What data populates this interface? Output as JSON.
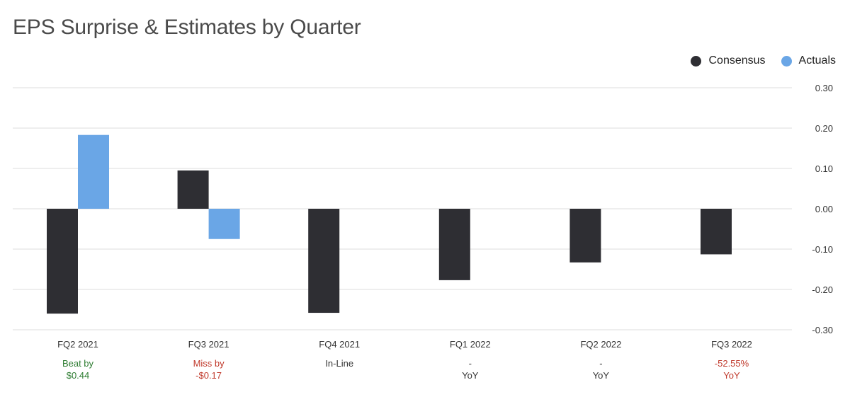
{
  "chart_data": {
    "type": "bar",
    "title": "EPS Surprise & Estimates by Quarter",
    "xlabel": "",
    "ylabel": "",
    "ylim": [
      -0.3,
      0.3
    ],
    "yticks": [
      "0.30",
      "0.20",
      "0.10",
      "0.00",
      "-0.10",
      "-0.20",
      "-0.30"
    ],
    "ytick_values": [
      0.3,
      0.2,
      0.1,
      0.0,
      -0.1,
      -0.2,
      -0.3
    ],
    "grid": true,
    "legend_position": "top-right",
    "categories": [
      "FQ2 2021",
      "FQ3 2021",
      "FQ4 2021",
      "FQ1 2022",
      "FQ2 2022",
      "FQ3 2022"
    ],
    "series": [
      {
        "name": "Consensus",
        "color": "#2e2e33",
        "values": [
          -0.26,
          0.095,
          -0.258,
          -0.177,
          -0.133,
          -0.113
        ]
      },
      {
        "name": "Actuals",
        "color": "#6aa6e6",
        "values": [
          0.183,
          -0.075,
          null,
          null,
          null,
          null
        ]
      }
    ],
    "annotations": [
      {
        "line1": "Beat by",
        "line2": "$0.44",
        "color": "#2e7d32"
      },
      {
        "line1": "Miss by",
        "line2": "-$0.17",
        "color": "#c0392b"
      },
      {
        "line1": "In-Line",
        "line2": "",
        "color": "#333333"
      },
      {
        "line1": "-",
        "line2": "YoY",
        "color": "#333333"
      },
      {
        "line1": "-",
        "line2": "YoY",
        "color": "#333333"
      },
      {
        "line1": "-52.55%",
        "line2": "YoY",
        "color": "#c0392b"
      }
    ]
  }
}
